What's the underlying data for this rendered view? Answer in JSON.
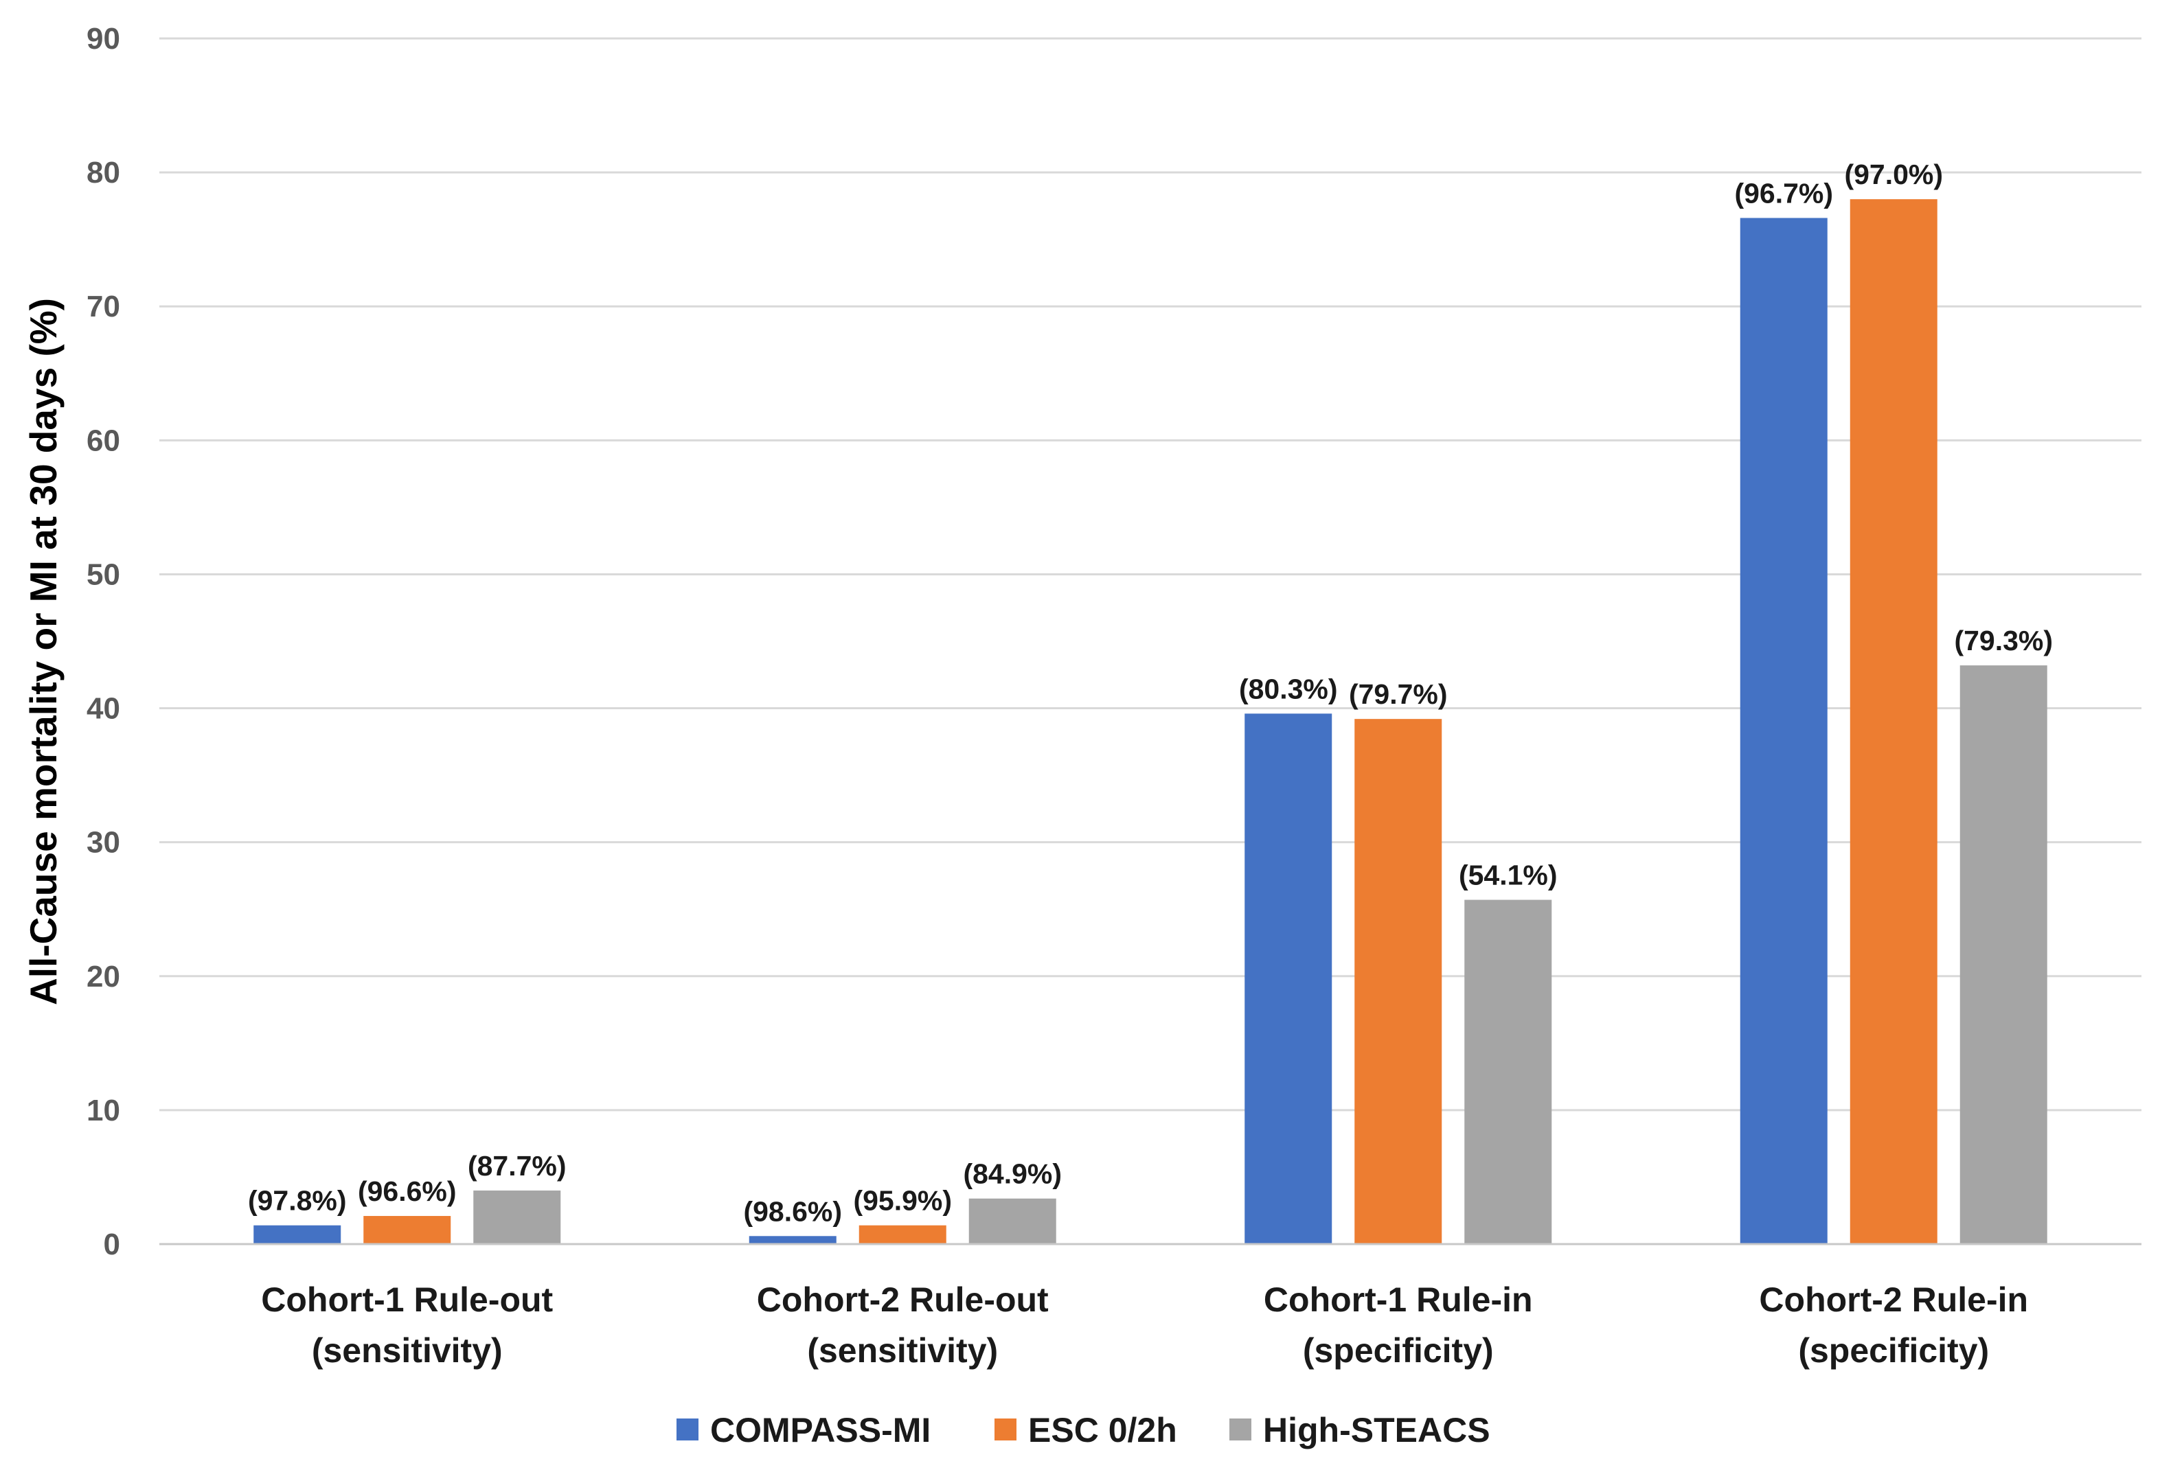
{
  "chart_data": {
    "type": "bar",
    "title": "",
    "xlabel": "",
    "ylabel": "All-Cause mortality or MI at 30 days (%)",
    "ylim": [
      0,
      90
    ],
    "yticks": [
      0,
      10,
      20,
      30,
      40,
      50,
      60,
      70,
      80,
      90
    ],
    "grid": true,
    "legend_position": "bottom",
    "categories": [
      [
        "Cohort-1 Rule-out",
        "(sensitivity)"
      ],
      [
        "Cohort-2 Rule-out",
        "(sensitivity)"
      ],
      [
        "Cohort-1 Rule-in",
        "(specificity)"
      ],
      [
        "Cohort-2 Rule-in",
        "(specificity)"
      ]
    ],
    "series": [
      {
        "name": "COMPASS-MI",
        "color": "#4472C4",
        "values": [
          1.4,
          0.6,
          39.6,
          76.6
        ],
        "labels": [
          "(97.8%)",
          "(98.6%)",
          "(80.3%)",
          "(96.7%)"
        ]
      },
      {
        "name": "ESC 0/2h",
        "color": "#ED7D31",
        "values": [
          2.1,
          1.4,
          39.2,
          78.0
        ],
        "labels": [
          "(96.6%)",
          "(95.9%)",
          "(79.7%)",
          "(97.0%)"
        ]
      },
      {
        "name": "High-STEACS",
        "color": "#A5A5A5",
        "values": [
          4.0,
          3.4,
          25.7,
          43.2
        ],
        "labels": [
          "(87.7%)",
          "(84.9%)",
          "(54.1%)",
          "(79.3%)"
        ]
      }
    ]
  }
}
